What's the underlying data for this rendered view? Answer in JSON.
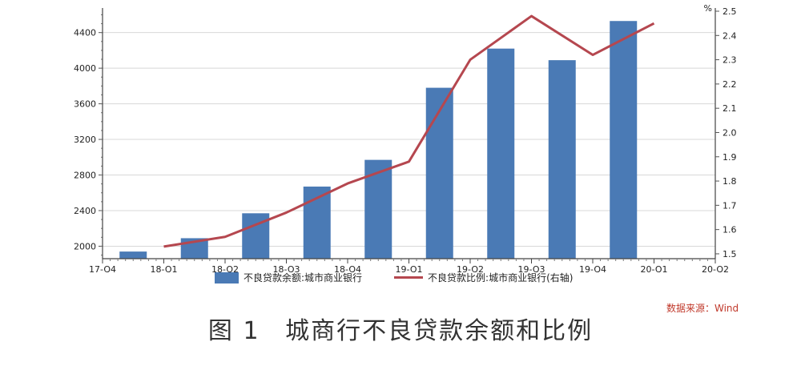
{
  "chart_data": {
    "type": "bar",
    "categories": [
      "18-Q1",
      "18-Q2",
      "18-Q3",
      "18-Q4",
      "19-Q1",
      "19-Q2",
      "19-Q3",
      "19-Q4",
      "20-Q1"
    ],
    "x_tick_labels": [
      "17-Q4",
      "18-Q1",
      "18-Q2",
      "18-Q3",
      "18-Q4",
      "19-Q1",
      "19-Q2",
      "19-Q3",
      "19-Q4",
      "20-Q1",
      "20-Q2"
    ],
    "series": [
      {
        "name": "不良贷款余额:城市商业银行",
        "type": "bar",
        "axis": "left",
        "color": "#4a7ab5",
        "values": [
          1940,
          2090,
          2370,
          2670,
          2970,
          3780,
          4220,
          4090,
          4530
        ]
      },
      {
        "name": "不良贷款比例:城市商业银行(右轴)",
        "type": "line",
        "axis": "right",
        "color": "#b5474f",
        "values": [
          1.53,
          1.57,
          1.67,
          1.79,
          1.88,
          2.3,
          2.48,
          2.32,
          2.45
        ]
      }
    ],
    "y_left": {
      "ylim": [
        1860,
        4640
      ],
      "ticks": [
        "2000",
        "2400",
        "2800",
        "3200",
        "3600",
        "4000",
        "4400"
      ]
    },
    "y_right": {
      "unit": "%",
      "ylim": [
        1.48,
        2.5
      ],
      "ticks": [
        "1.5",
        "1.6",
        "1.7",
        "1.8",
        "1.9",
        "2.0",
        "2.1",
        "2.2",
        "2.3",
        "2.4",
        "2.5"
      ]
    },
    "grid": true,
    "legend_position": "bottom"
  },
  "legend": {
    "bar_label": "不良贷款余额:城市商业银行",
    "line_label": "不良贷款比例:城市商业银行(右轴)"
  },
  "source": "数据来源：Wind",
  "caption": {
    "figure_no": "图 1",
    "title": "城商行不良贷款余额和比例"
  }
}
